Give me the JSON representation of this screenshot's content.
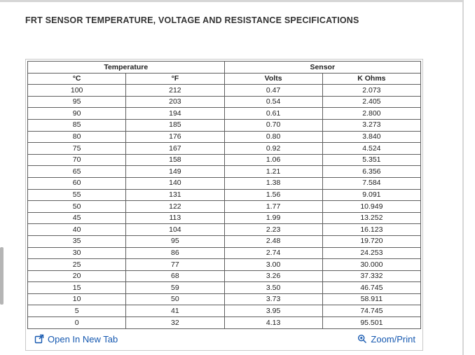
{
  "page": {
    "title": "FRT SENSOR TEMPERATURE, VOLTAGE AND RESISTANCE SPECIFICATIONS"
  },
  "table": {
    "group_headers": [
      "Temperature",
      "Sensor"
    ],
    "column_headers": [
      "°C",
      "°F",
      "Volts",
      "K Ohms"
    ],
    "rows": [
      [
        "100",
        "212",
        "0.47",
        "2.073"
      ],
      [
        "95",
        "203",
        "0.54",
        "2.405"
      ],
      [
        "90",
        "194",
        "0.61",
        "2.800"
      ],
      [
        "85",
        "185",
        "0.70",
        "3.273"
      ],
      [
        "80",
        "176",
        "0.80",
        "3.840"
      ],
      [
        "75",
        "167",
        "0.92",
        "4.524"
      ],
      [
        "70",
        "158",
        "1.06",
        "5.351"
      ],
      [
        "65",
        "149",
        "1.21",
        "6.356"
      ],
      [
        "60",
        "140",
        "1.38",
        "7.584"
      ],
      [
        "55",
        "131",
        "1.56",
        "9.091"
      ],
      [
        "50",
        "122",
        "1.77",
        "10.949"
      ],
      [
        "45",
        "113",
        "1.99",
        "13.252"
      ],
      [
        "40",
        "104",
        "2.23",
        "16.123"
      ],
      [
        "35",
        "95",
        "2.48",
        "19.720"
      ],
      [
        "30",
        "86",
        "2.74",
        "24.253"
      ],
      [
        "25",
        "77",
        "3.00",
        "30.000"
      ],
      [
        "20",
        "68",
        "3.26",
        "37.332"
      ],
      [
        "15",
        "59",
        "3.50",
        "46.745"
      ],
      [
        "10",
        "50",
        "3.73",
        "58.911"
      ],
      [
        "5",
        "41",
        "3.95",
        "74.745"
      ],
      [
        "0",
        "32",
        "4.13",
        "95.501"
      ]
    ]
  },
  "footer": {
    "open_in_new_tab_label": "Open In New Tab",
    "zoom_print_label": "Zoom/Print"
  },
  "colors": {
    "link_blue": "#1558b0",
    "title_text": "#333333",
    "table_border": "#5f5f5f",
    "frame_border": "#d6d6d6"
  }
}
